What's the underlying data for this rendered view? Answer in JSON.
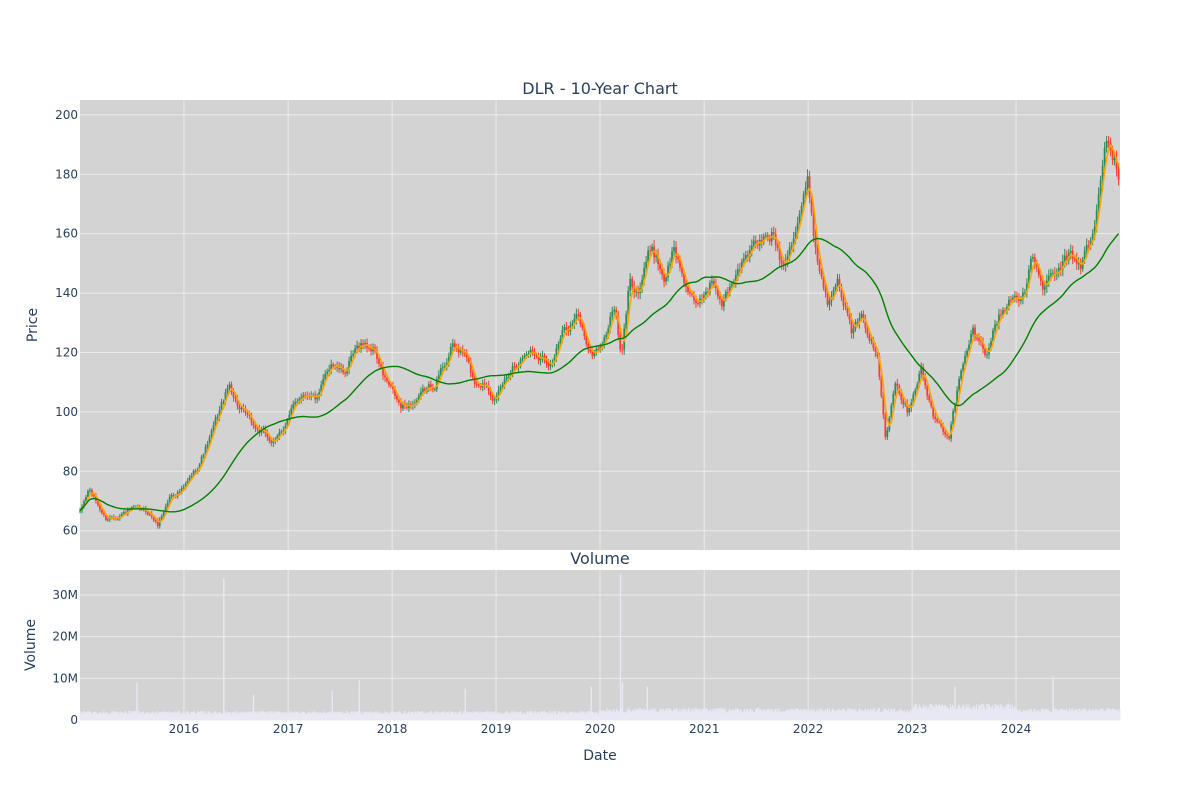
{
  "chart_data": {
    "type": "candlestick",
    "title": "DLR - 10-Year Chart",
    "price_panel": {
      "ylabel": "Price",
      "ylim": [
        53.5,
        205
      ],
      "yticks": [
        60,
        80,
        100,
        120,
        140,
        160,
        180,
        200
      ],
      "series": [
        {
          "kind": "ohlc",
          "up_color": "#2e8b57",
          "down_color": "#ff3b30"
        },
        {
          "kind": "moving-average",
          "color": "#ffa500"
        },
        {
          "kind": "moving-average",
          "color": "#008000"
        }
      ],
      "anchors": [
        [
          "2015-01-02",
          66
        ],
        [
          "2015-02-01",
          74
        ],
        [
          "2015-04-01",
          64
        ],
        [
          "2015-07-01",
          67
        ],
        [
          "2015-09-01",
          66
        ],
        [
          "2015-10-01",
          62
        ],
        [
          "2015-11-15",
          72
        ],
        [
          "2016-01-01",
          74
        ],
        [
          "2016-02-15",
          81
        ],
        [
          "2016-04-01",
          91
        ],
        [
          "2016-05-15",
          103
        ],
        [
          "2016-06-10",
          109
        ],
        [
          "2016-07-15",
          101
        ],
        [
          "2016-09-01",
          95
        ],
        [
          "2016-10-15",
          92
        ],
        [
          "2016-11-15",
          89
        ],
        [
          "2017-01-01",
          98
        ],
        [
          "2017-02-15",
          106
        ],
        [
          "2017-03-15",
          107
        ],
        [
          "2017-04-15",
          104
        ],
        [
          "2017-06-01",
          117
        ],
        [
          "2017-07-15",
          113
        ],
        [
          "2017-09-15",
          123
        ],
        [
          "2017-11-01",
          121
        ],
        [
          "2017-12-01",
          112
        ],
        [
          "2018-02-01",
          101
        ],
        [
          "2018-04-01",
          104
        ],
        [
          "2018-06-01",
          110
        ],
        [
          "2018-08-01",
          122
        ],
        [
          "2018-09-15",
          119
        ],
        [
          "2018-10-15",
          110
        ],
        [
          "2018-12-01",
          110
        ],
        [
          "2019-01-01",
          104
        ],
        [
          "2019-03-01",
          116
        ],
        [
          "2019-05-01",
          121
        ],
        [
          "2019-07-15",
          117
        ],
        [
          "2019-09-01",
          128
        ],
        [
          "2019-10-15",
          132
        ],
        [
          "2019-12-01",
          119
        ],
        [
          "2020-01-15",
          124
        ],
        [
          "2020-02-21",
          136
        ],
        [
          "2020-03-16",
          117
        ],
        [
          "2020-04-15",
          145
        ],
        [
          "2020-05-15",
          141
        ],
        [
          "2020-07-01",
          156
        ],
        [
          "2020-08-15",
          145
        ],
        [
          "2020-09-15",
          155
        ],
        [
          "2020-10-15",
          147
        ],
        [
          "2020-12-01",
          134
        ],
        [
          "2021-01-01",
          140
        ],
        [
          "2021-02-01",
          145
        ],
        [
          "2021-03-01",
          135
        ],
        [
          "2021-05-01",
          149
        ],
        [
          "2021-07-01",
          156
        ],
        [
          "2021-09-01",
          160
        ],
        [
          "2021-10-01",
          150
        ],
        [
          "2021-11-15",
          162
        ],
        [
          "2021-12-31",
          177
        ],
        [
          "2022-02-01",
          152
        ],
        [
          "2022-03-15",
          136
        ],
        [
          "2022-04-15",
          148
        ],
        [
          "2022-06-01",
          127
        ],
        [
          "2022-07-15",
          131
        ],
        [
          "2022-09-01",
          118
        ],
        [
          "2022-09-30",
          92
        ],
        [
          "2022-11-01",
          112
        ],
        [
          "2022-12-15",
          101
        ],
        [
          "2023-02-01",
          115
        ],
        [
          "2023-03-15",
          98
        ],
        [
          "2023-05-10",
          92
        ],
        [
          "2023-06-15",
          110
        ],
        [
          "2023-08-01",
          127
        ],
        [
          "2023-09-15",
          120
        ],
        [
          "2023-11-01",
          132
        ],
        [
          "2023-12-15",
          138
        ],
        [
          "2024-02-01",
          141
        ],
        [
          "2024-03-01",
          152
        ],
        [
          "2024-04-01",
          142
        ],
        [
          "2024-05-15",
          145
        ],
        [
          "2024-07-01",
          152
        ],
        [
          "2024-08-15",
          150
        ],
        [
          "2024-10-01",
          160
        ],
        [
          "2024-11-15",
          193
        ],
        [
          "2024-12-31",
          178
        ]
      ]
    },
    "volume_panel": {
      "title": "Volume",
      "ylabel": "Volume",
      "ylim": [
        0,
        36000000
      ],
      "yticks": [
        0,
        10000000,
        20000000,
        30000000
      ],
      "ytick_labels": [
        "0",
        "10M",
        "20M",
        "30M"
      ],
      "bar_color": "#e8e8f5",
      "spikes": [
        [
          "2015-07-20",
          9000000
        ],
        [
          "2016-05-20",
          34000000
        ],
        [
          "2016-09-01",
          6000000
        ],
        [
          "2017-09-08",
          9500000
        ],
        [
          "2017-06-05",
          7000000
        ],
        [
          "2018-09-15",
          7500000
        ],
        [
          "2019-12-01",
          8000000
        ],
        [
          "2020-03-13",
          35000000
        ],
        [
          "2020-03-20",
          9000000
        ],
        [
          "2020-06-15",
          8000000
        ],
        [
          "2024-05-10",
          10500000
        ],
        [
          "2023-06-01",
          8000000
        ]
      ]
    },
    "xaxis": {
      "label": "Date",
      "range": [
        "2015-01-01",
        "2024-12-31"
      ],
      "tick_labels": [
        "2016",
        "2017",
        "2018",
        "2019",
        "2020",
        "2021",
        "2022",
        "2023",
        "2024"
      ]
    },
    "background_color": "#d3d3d3",
    "grid": true
  }
}
